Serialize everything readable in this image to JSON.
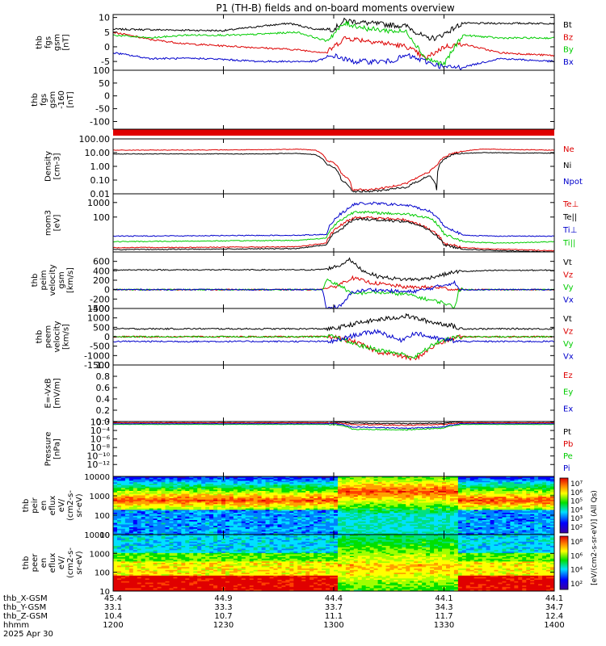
{
  "title": "P1 (TH-B) fields and on-board moments overview",
  "colors": {
    "black": "#000000",
    "red": "#dd0000",
    "green": "#00cc00",
    "blue": "#0000cc"
  },
  "chart_data": [
    {
      "type": "line",
      "panel": "fgs-gsm",
      "ylabel": [
        "thb",
        "fgs",
        "gsm",
        "[nT]"
      ],
      "ylim": [
        -8,
        11
      ],
      "yticks": [
        10,
        5,
        0,
        -5
      ],
      "series": [
        {
          "name": "Bt",
          "color": "black",
          "t": [
            1200,
            1230,
            1240,
            1248,
            1255,
            1300,
            1303,
            1310,
            1320,
            1325,
            1328,
            1335,
            1345,
            1400
          ],
          "values": [
            6,
            5.5,
            7,
            8,
            6,
            6,
            9,
            8,
            7,
            3,
            3,
            8,
            8,
            8
          ]
        },
        {
          "name": "Bz",
          "color": "red",
          "t": [
            1200,
            1210,
            1220,
            1235,
            1250,
            1258,
            1303,
            1310,
            1320,
            1325,
            1330,
            1335,
            1345,
            1400
          ],
          "values": [
            5,
            2.5,
            1,
            0,
            -1,
            -2,
            3,
            2,
            0,
            -4,
            0,
            1,
            -2,
            -3
          ]
        },
        {
          "name": "By",
          "color": "green",
          "t": [
            1200,
            1210,
            1220,
            1235,
            1250,
            1258,
            1303,
            1310,
            1320,
            1325,
            1330,
            1335,
            1345,
            1400
          ],
          "values": [
            4,
            3,
            4,
            4,
            5,
            2,
            8,
            6,
            5,
            -4,
            -6,
            4,
            3,
            3
          ]
        },
        {
          "name": "Bx",
          "color": "blue",
          "t": [
            1200,
            1210,
            1225,
            1240,
            1255,
            1300,
            1305,
            1315,
            1320,
            1325,
            1330,
            1335,
            1345,
            1400
          ],
          "values": [
            -2,
            -4,
            -4,
            -5,
            -5,
            -3,
            -5,
            -5,
            -3,
            -5,
            -7,
            -7,
            -4,
            -5
          ]
        }
      ]
    },
    {
      "type": "line",
      "panel": "fgs-gsm-zoom",
      "ylabel": [
        "thb",
        "fgs",
        "gsm",
        "-160",
        "[nT]"
      ],
      "ylim": [
        -130,
        100
      ],
      "yticks": [
        100,
        50,
        0,
        -50,
        -100
      ],
      "series": []
    },
    {
      "type": "line",
      "panel": "density",
      "scale": "log",
      "ylabel": [
        "Density",
        "[cm-3]"
      ],
      "ylim": [
        0.01,
        100
      ],
      "yticks": [
        "100.00",
        "10.00",
        "1.00",
        "0.10",
        "0.01"
      ],
      "series": [
        {
          "name": "Ne",
          "color": "red",
          "t": [
            1200,
            1240,
            1250,
            1255,
            1258,
            1302,
            1305,
            1310,
            1315,
            1320,
            1323,
            1326,
            1328,
            1333,
            1340,
            1400
          ],
          "values": [
            15,
            16,
            18,
            15,
            3,
            0.3,
            0.02,
            0.02,
            0.03,
            0.06,
            0.15,
            0.4,
            1,
            10,
            18,
            15
          ]
        },
        {
          "name": "Ni",
          "color": "black",
          "t": [
            1200,
            1240,
            1250,
            1255,
            1258,
            1302,
            1305,
            1310,
            1315,
            1320,
            1323,
            1326,
            1328,
            1333,
            1340,
            1400
          ],
          "values": [
            8,
            8,
            9,
            7,
            1.5,
            0.1,
            0.015,
            0.015,
            0.02,
            0.03,
            0.08,
            0.2,
            0.02,
            8,
            10,
            9
          ]
        },
        {
          "name": "Npot",
          "color": "blue",
          "t": [],
          "values": []
        }
      ]
    },
    {
      "type": "line",
      "panel": "temperature",
      "scale": "log",
      "ylabel": [
        "mom3",
        "[eV]"
      ],
      "ylim": [
        20,
        2000
      ],
      "yticks": [
        "1000",
        "100"
      ],
      "series": [
        {
          "name": "Te⊥",
          "color": "red",
          "t": [
            1200,
            1250,
            1258,
            1303,
            1306,
            1320,
            1326,
            1330,
            1335,
            1345,
            1400
          ],
          "values": [
            28,
            30,
            40,
            200,
            320,
            250,
            120,
            40,
            28,
            25,
            22
          ]
        },
        {
          "name": "Te||",
          "color": "black",
          "t": [
            1200,
            1250,
            1258,
            1303,
            1306,
            1320,
            1326,
            1330,
            1335,
            1345,
            1400
          ],
          "values": [
            24,
            26,
            35,
            150,
            280,
            220,
            110,
            35,
            25,
            22,
            20
          ]
        },
        {
          "name": "Ti⊥",
          "color": "blue",
          "t": [
            1200,
            1250,
            1258,
            1303,
            1306,
            1310,
            1320,
            1326,
            1330,
            1335,
            1345,
            1400
          ],
          "values": [
            70,
            75,
            80,
            500,
            900,
            950,
            800,
            500,
            150,
            75,
            70,
            70
          ]
        },
        {
          "name": "Ti||",
          "color": "green",
          "t": [
            1200,
            1250,
            1258,
            1303,
            1306,
            1310,
            1320,
            1326,
            1330,
            1335,
            1345,
            1400
          ],
          "values": [
            45,
            50,
            60,
            300,
            500,
            450,
            400,
            300,
            80,
            45,
            40,
            45
          ]
        }
      ]
    },
    {
      "type": "line",
      "panel": "peim-velocity",
      "ylabel": [
        "thb",
        "peim",
        "velocity",
        "gsm",
        "[km/s]"
      ],
      "ylim": [
        -400,
        800
      ],
      "yticks": [
        600,
        400,
        200,
        0,
        -200,
        -400
      ],
      "series": [
        {
          "name": "Vt",
          "color": "black",
          "t": [
            1200,
            1255,
            1258,
            1302,
            1304,
            1308,
            1312,
            1318,
            1324,
            1330,
            1333,
            1345,
            1400
          ],
          "values": [
            420,
            420,
            440,
            520,
            650,
            400,
            280,
            220,
            220,
            320,
            380,
            410,
            410
          ]
        },
        {
          "name": "Vz",
          "color": "red",
          "t": [
            1200,
            1255,
            1300,
            1305,
            1310,
            1320,
            1328,
            1333,
            1345,
            1400
          ],
          "values": [
            0,
            0,
            50,
            250,
            150,
            50,
            50,
            0,
            0,
            0
          ]
        },
        {
          "name": "Vy",
          "color": "green",
          "t": [
            1200,
            1257,
            1258,
            1302,
            1305,
            1310,
            1320,
            1325,
            1330,
            1333,
            1334,
            1345,
            1400
          ],
          "values": [
            0,
            0,
            200,
            80,
            -100,
            -50,
            -100,
            -200,
            -280,
            -380,
            0,
            0,
            0
          ]
        },
        {
          "name": "Vx",
          "color": "blue",
          "t": [
            1200,
            1257,
            1258,
            1302,
            1305,
            1310,
            1320,
            1325,
            1330,
            1333,
            1334,
            1345,
            1400
          ],
          "values": [
            0,
            0,
            -400,
            -350,
            -50,
            0,
            -50,
            0,
            100,
            150,
            0,
            0,
            0
          ]
        }
      ]
    },
    {
      "type": "line",
      "panel": "peem-velocity",
      "ylabel": [
        "thb",
        "peem",
        "velocity",
        "[km/s]"
      ],
      "ylim": [
        -1500,
        1500
      ],
      "yticks": [
        1500,
        1000,
        500,
        0,
        -500,
        -1000,
        -1500
      ],
      "series": [
        {
          "name": "Vt",
          "color": "black",
          "t": [
            1200,
            1300,
            1306,
            1312,
            1320,
            1326,
            1332,
            1334,
            1345,
            1400
          ],
          "values": [
            420,
            420,
            700,
            900,
            1100,
            800,
            600,
            420,
            420,
            420
          ]
        },
        {
          "name": "Vz",
          "color": "red",
          "t": [
            1200,
            1300,
            1306,
            1312,
            1318,
            1322,
            1328,
            1334,
            1345,
            1400
          ],
          "values": [
            0,
            0,
            -300,
            -800,
            -1000,
            -1200,
            -400,
            0,
            0,
            0
          ]
        },
        {
          "name": "Vy",
          "color": "green",
          "t": [
            1200,
            1300,
            1306,
            1312,
            1318,
            1322,
            1328,
            1334,
            1345,
            1400
          ],
          "values": [
            0,
            0,
            -400,
            -700,
            -900,
            -1100,
            -300,
            0,
            0,
            0
          ]
        },
        {
          "name": "Vx",
          "color": "blue",
          "t": [
            1200,
            1300,
            1306,
            1312,
            1318,
            1322,
            1328,
            1334,
            1345,
            1400
          ],
          "values": [
            -250,
            -250,
            100,
            300,
            -200,
            200,
            -100,
            -250,
            -250,
            -250
          ]
        }
      ]
    },
    {
      "type": "line",
      "panel": "efield",
      "ylabel": [
        "E=-VxB",
        "[mV/m]"
      ],
      "ylim": [
        0,
        1.0
      ],
      "yticks": [
        "1.0",
        "0.8",
        "0.6",
        "0.4",
        "0.2",
        "0.0"
      ],
      "series": [
        {
          "name": "Ez",
          "color": "red",
          "t": [],
          "values": []
        },
        {
          "name": "Ey",
          "color": "green",
          "t": [],
          "values": []
        },
        {
          "name": "Ex",
          "color": "blue",
          "t": [],
          "values": []
        }
      ]
    },
    {
      "type": "line",
      "panel": "pressure",
      "scale": "log",
      "ylabel": [
        "Pressure",
        "[nPa]"
      ],
      "ylim": [
        1e-12,
        0.01
      ],
      "yticks": [
        "10⁻²",
        "10⁻⁴",
        "10⁻⁶",
        "10⁻⁸",
        "10⁻¹⁰",
        "10⁻¹²"
      ],
      "series": [
        {
          "name": "Pt",
          "color": "black",
          "t": [
            1200,
            1300,
            1305,
            1320,
            1330,
            1335,
            1400
          ],
          "values": [
            0.01,
            0.01,
            0.005,
            0.004,
            0.005,
            0.01,
            0.01
          ]
        },
        {
          "name": "Pb",
          "color": "red",
          "t": [
            1200,
            1300,
            1305,
            1320,
            1330,
            1335,
            1400
          ],
          "values": [
            0.006,
            0.006,
            0.003,
            0.002,
            0.003,
            0.006,
            0.006
          ]
        },
        {
          "name": "Pe",
          "color": "green",
          "t": [
            1200,
            1300,
            1305,
            1320,
            1330,
            1335,
            1400
          ],
          "values": [
            0.003,
            0.003,
            0.0004,
            0.0003,
            0.0006,
            0.003,
            0.003
          ]
        },
        {
          "name": "Pi",
          "color": "blue",
          "t": [
            1200,
            1300,
            1305,
            1320,
            1330,
            1335,
            1400
          ],
          "values": [
            0.004,
            0.004,
            0.001,
            0.0006,
            0.001,
            0.004,
            0.004
          ]
        }
      ]
    },
    {
      "type": "heatmap",
      "panel": "peir-en-eflux",
      "ylabel": [
        "thb",
        "peir",
        "en",
        "eflux",
        "eV/",
        "(cm2-s-",
        "sr-eV)"
      ],
      "ylim": [
        8,
        18000
      ],
      "yticks": [
        "10000",
        "1000",
        "100",
        "10"
      ],
      "colorbar": {
        "ticks": [
          "10⁷",
          "10⁶",
          "10⁵",
          "10⁴",
          "10³",
          "10²"
        ],
        "label": "[eV/(cm2-s-sr-eV)] (All Qs)"
      }
    },
    {
      "type": "heatmap",
      "panel": "peer-en-eflux",
      "ylabel": [
        "thb",
        "peer",
        "en",
        "eflux",
        "eV/",
        "(cm2-s-",
        "sr-eV)"
      ],
      "ylim": [
        8,
        18000
      ],
      "yticks": [
        "10000",
        "1000",
        "100",
        "10"
      ],
      "colorbar": {
        "ticks": [
          "10⁸",
          "10⁶",
          "10⁴",
          "10²"
        ]
      }
    }
  ],
  "xaxis": {
    "rows": [
      {
        "label": "thb_X-GSM",
        "values": [
          "45.4",
          "44.9",
          "44.4",
          "44.1",
          "44.1"
        ]
      },
      {
        "label": "thb_Y-GSM",
        "values": [
          "33.1",
          "33.3",
          "33.7",
          "34.3",
          "34.7"
        ]
      },
      {
        "label": "thb_Z-GSM",
        "values": [
          "10.4",
          "10.7",
          "11.1",
          "11.7",
          "12.4"
        ]
      },
      {
        "label": "hhmm",
        "values": [
          "1200",
          "1230",
          "1300",
          "1330",
          "1400"
        ]
      }
    ],
    "date": "2025 Apr 30"
  }
}
